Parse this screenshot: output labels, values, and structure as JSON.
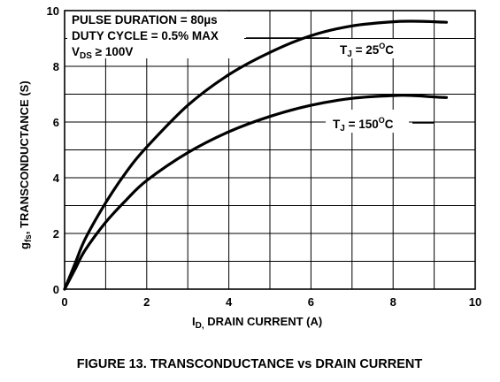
{
  "chart_data": {
    "type": "line",
    "xlabel_main": "I",
    "xlabel_sub": "D,",
    "xlabel_rest": " DRAIN CURRENT (A)",
    "ylabel_main": "g",
    "ylabel_sub": "fs",
    "ylabel_rest": ", TRANSCONDUCTANCE (S)",
    "xlim": [
      0,
      10
    ],
    "ylim": [
      0,
      10
    ],
    "x_ticks": [
      "0",
      "2",
      "4",
      "6",
      "8",
      "10"
    ],
    "y_ticks": [
      "0",
      "2",
      "4",
      "6",
      "8",
      "10"
    ],
    "grid": true,
    "conditions": {
      "line1": "PULSE DURATION = 80µs",
      "line2": "DUTY CYCLE = 0.5% MAX",
      "line3_main": "V",
      "line3_sub": "DS",
      "line3_rest": " ≥ 100V"
    },
    "series": [
      {
        "name_main": "T",
        "name_sub": "J",
        "name_rest": " = 25",
        "name_sup": "O",
        "name_unit": "C",
        "x": [
          0,
          0.25,
          0.5,
          1,
          1.5,
          2,
          3,
          4,
          5,
          6,
          7,
          8,
          8.5,
          9,
          9.3
        ],
        "y": [
          0,
          0.9,
          1.8,
          3.1,
          4.2,
          5.1,
          6.6,
          7.7,
          8.5,
          9.1,
          9.45,
          9.6,
          9.62,
          9.6,
          9.58
        ]
      },
      {
        "name_main": "T",
        "name_sub": "J",
        "name_rest": " = 150",
        "name_sup": "O",
        "name_unit": "C",
        "x": [
          0,
          0.25,
          0.5,
          1,
          1.5,
          2,
          3,
          4,
          5,
          6,
          7,
          8,
          8.5,
          9,
          9.3
        ],
        "y": [
          0,
          0.7,
          1.4,
          2.4,
          3.2,
          3.9,
          4.9,
          5.65,
          6.2,
          6.6,
          6.85,
          6.95,
          6.95,
          6.9,
          6.88
        ]
      }
    ]
  },
  "caption": "FIGURE 13.  TRANSCONDUCTANCE vs DRAIN CURRENT"
}
